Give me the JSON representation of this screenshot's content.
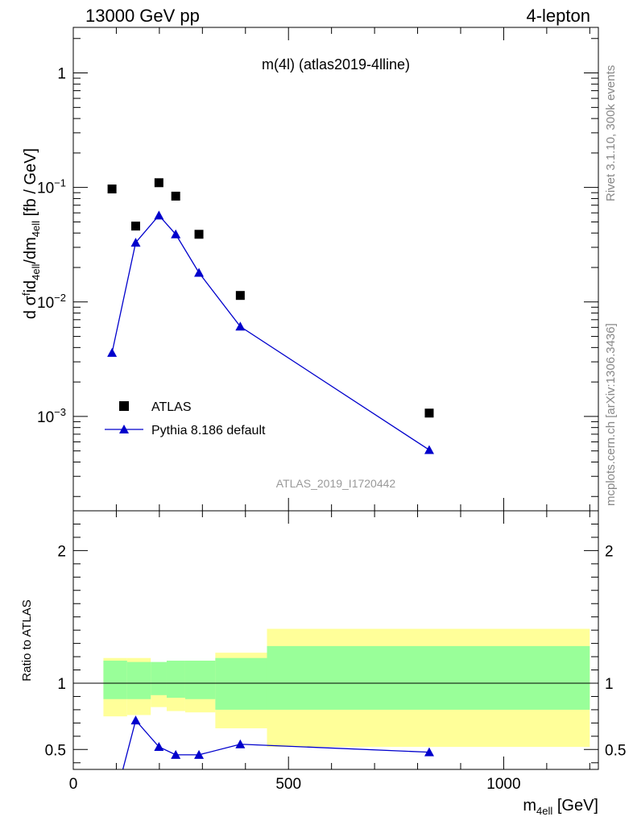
{
  "header": {
    "left": "13000 GeV pp",
    "right": "4-lepton"
  },
  "side_text": {
    "top": "Rivet 3.1.10,  300k events",
    "bottom": "mcplots.cern.ch [arXiv:1306.3436]"
  },
  "chart_data": [
    {
      "type": "scatter",
      "title": "m(4l) (atlas2019-4lline)",
      "watermark": "ATLAS_2019_I1720442",
      "ylabel": "d σᶠid4ell/dm4ell [fb / GeV]",
      "xlabel": "",
      "yscale": "log",
      "ylim": [
        0.00015,
        2.5
      ],
      "xlim": [
        0,
        1220
      ],
      "y_ticks": [
        {
          "value": 1,
          "label": "1"
        },
        {
          "value": 0.1,
          "label": "10",
          "exp": "−1"
        },
        {
          "value": 0.01,
          "label": "10",
          "exp": "−2"
        },
        {
          "value": 0.001,
          "label": "10",
          "exp": "−3"
        }
      ],
      "legend_position": "lower-left",
      "series": [
        {
          "name": "ATLAS",
          "marker": "square",
          "color": "#000000",
          "x": [
            90,
            145,
            199,
            238,
            292,
            388,
            827
          ],
          "y": [
            0.097,
            0.046,
            0.11,
            0.084,
            0.039,
            0.0114,
            0.00107
          ]
        },
        {
          "name": "Pythia 8.186 default",
          "marker": "triangle",
          "color": "#0000cc",
          "x": [
            90,
            145,
            199,
            238,
            292,
            388,
            827
          ],
          "y": [
            0.0036,
            0.033,
            0.057,
            0.039,
            0.018,
            0.0061,
            0.00051
          ]
        }
      ]
    },
    {
      "type": "line",
      "ylabel": "Ratio to ATLAS",
      "xlabel": "m4ell [GeV]",
      "ylim": [
        0.35,
        2.3
      ],
      "xlim": [
        0,
        1220
      ],
      "y_ticks": [
        {
          "value": 0.5,
          "label": "0.5"
        },
        {
          "value": 1,
          "label": "1"
        },
        {
          "value": 2,
          "label": "2"
        }
      ],
      "x_ticks": [
        {
          "value": 0,
          "label": "0"
        },
        {
          "value": 500,
          "label": "500"
        },
        {
          "value": 1000,
          "label": "1000"
        }
      ],
      "uncertainty_bands": [
        {
          "x": [
            70,
            125
          ],
          "stat": [
            0.88,
            1.17
          ],
          "total": [
            0.75,
            1.19
          ]
        },
        {
          "x": [
            125,
            180
          ],
          "stat": [
            0.88,
            1.16
          ],
          "total": [
            0.76,
            1.19
          ]
        },
        {
          "x": [
            180,
            217
          ],
          "stat": [
            0.91,
            1.16
          ],
          "total": [
            0.82,
            1.14
          ]
        },
        {
          "x": [
            217,
            260
          ],
          "stat": [
            0.89,
            1.17
          ],
          "total": [
            0.79,
            1.16
          ]
        },
        {
          "x": [
            260,
            330
          ],
          "stat": [
            0.88,
            1.17
          ],
          "total": [
            0.78,
            1.17
          ]
        },
        {
          "x": [
            330,
            450
          ],
          "stat": [
            0.8,
            1.19
          ],
          "total": [
            0.66,
            1.23
          ]
        },
        {
          "x": [
            450,
            1200
          ],
          "stat": [
            0.8,
            1.28
          ],
          "total": [
            0.52,
            1.41
          ]
        }
      ],
      "band_colors": {
        "stat": "#99ff99",
        "total": "#ffff99"
      },
      "reference_line": 1,
      "series": [
        {
          "name": "Pythia 8.186 default",
          "marker": "triangle",
          "color": "#0000cc",
          "x": [
            90,
            145,
            199,
            238,
            292,
            388,
            827
          ],
          "y": [
            0.037,
            0.72,
            0.52,
            0.46,
            0.46,
            0.54,
            0.48
          ]
        }
      ]
    }
  ]
}
